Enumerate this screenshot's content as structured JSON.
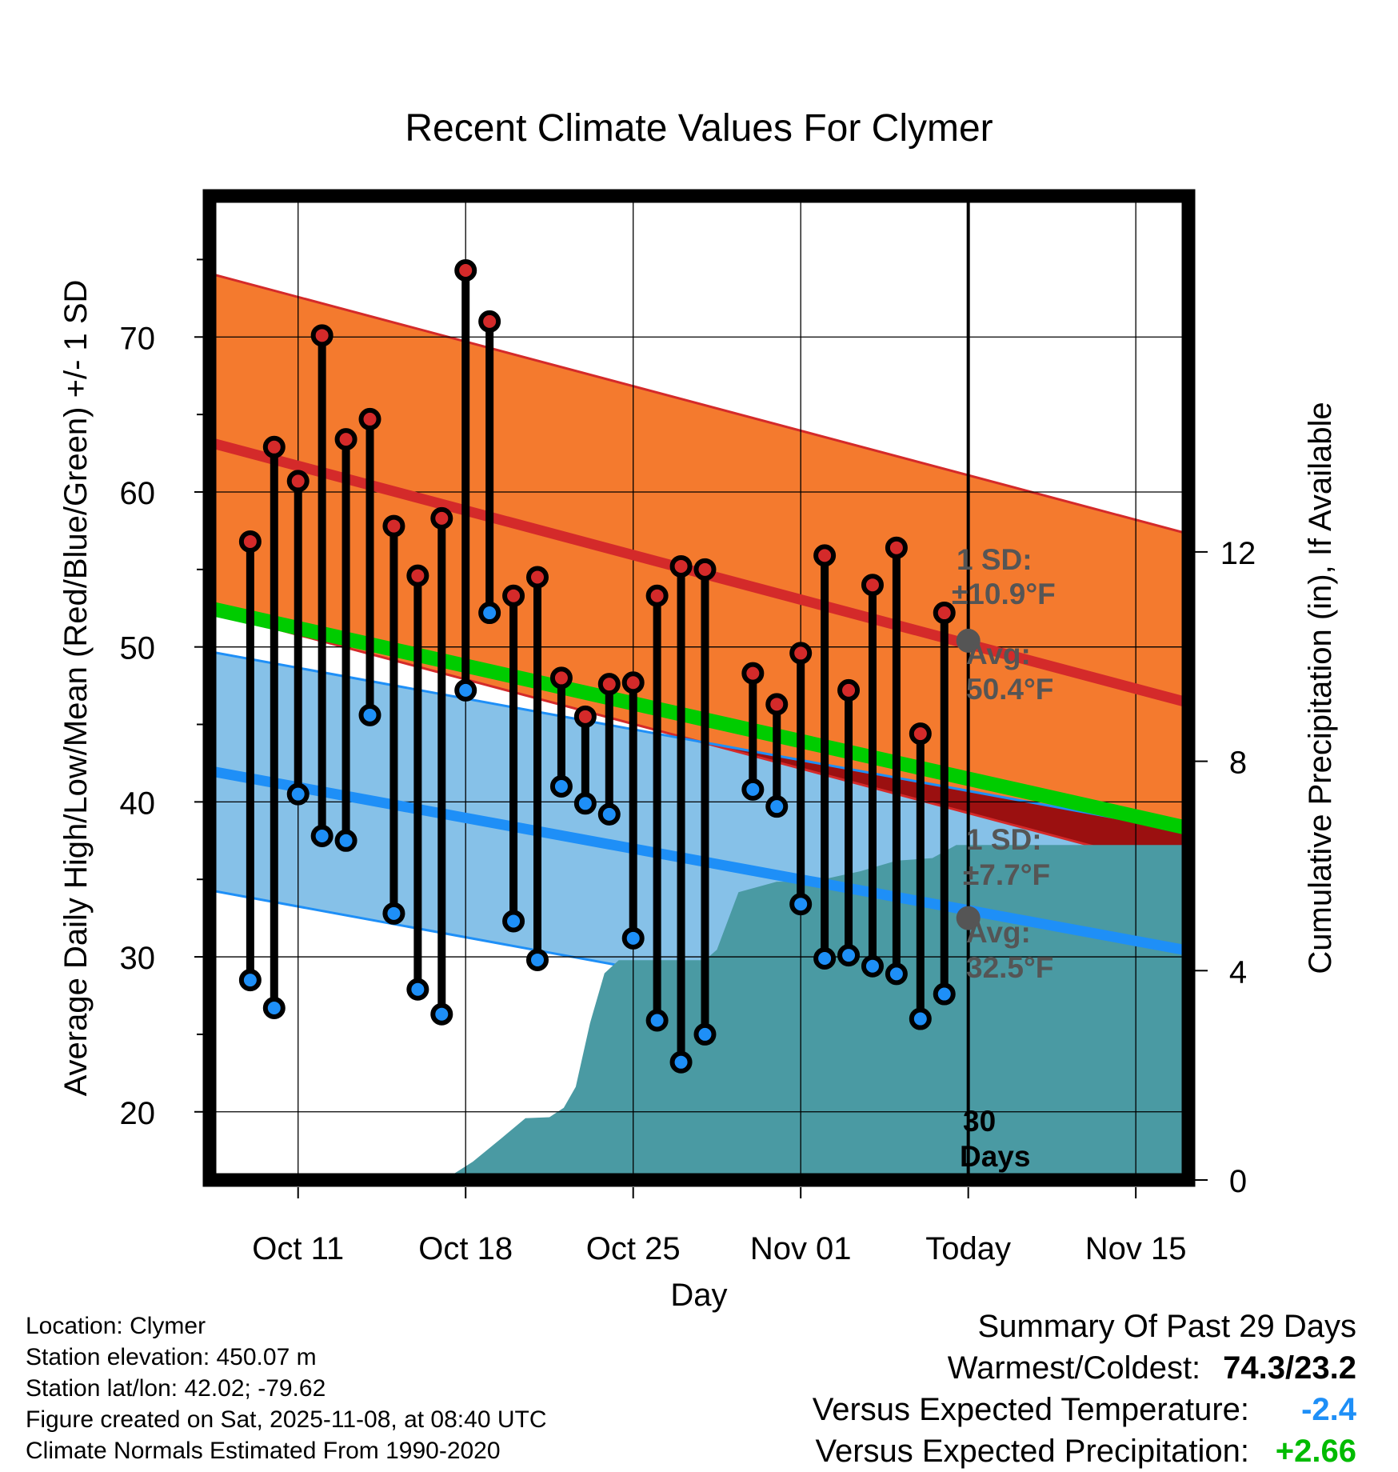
{
  "chart_data": {
    "type": "line",
    "title": "Recent Climate Values For Clymer",
    "xlabel": "Day",
    "ylabel_left": "Average Daily High/Low/Mean (Red/Blue/Green) +/- 1 SD",
    "ylabel_right": "Cumulative Precipitation (in), If Available",
    "ylim_left": [
      15.6,
      79.1
    ],
    "ylim_right": [
      0,
      18.8
    ],
    "xlim_day": [
      -3.7,
      37.2
    ],
    "x_ticks": [
      {
        "day": 0,
        "label": "Oct 11"
      },
      {
        "day": 7,
        "label": "Oct 18"
      },
      {
        "day": 14,
        "label": "Oct 25"
      },
      {
        "day": 21,
        "label": "Nov 01"
      },
      {
        "day": 28,
        "label": "Today"
      },
      {
        "day": 35,
        "label": "Nov 15"
      }
    ],
    "y_ticks_left": [
      {
        "value": 20,
        "label": "20"
      },
      {
        "value": 30,
        "label": "30"
      },
      {
        "value": 40,
        "label": "40"
      },
      {
        "value": 50,
        "label": "50"
      },
      {
        "value": 60,
        "label": "60"
      },
      {
        "value": 70,
        "label": "70"
      }
    ],
    "y_minor_left": [
      25,
      35,
      45,
      55,
      65,
      75
    ],
    "y_ticks_right": [
      {
        "value": 0,
        "label": "0"
      },
      {
        "value": 4,
        "label": "4"
      },
      {
        "value": 8,
        "label": "8"
      },
      {
        "value": 12,
        "label": "12"
      }
    ],
    "daily_days": [
      -2,
      -1,
      0,
      1,
      2,
      3,
      4,
      5,
      6,
      7,
      8,
      9,
      10,
      11,
      12,
      13,
      14,
      15,
      16,
      17,
      19,
      20,
      21,
      22,
      23,
      24,
      25,
      26,
      27
    ],
    "daily_high": [
      56.8,
      62.9,
      60.7,
      70.1,
      63.4,
      64.7,
      57.8,
      54.6,
      58.3,
      74.3,
      71.0,
      53.3,
      54.5,
      48.0,
      45.5,
      47.6,
      47.7,
      53.3,
      55.2,
      55.0,
      48.3,
      46.3,
      49.6,
      55.9,
      47.2,
      54.0,
      56.4,
      44.4,
      52.2
    ],
    "daily_low": [
      28.5,
      26.7,
      40.5,
      37.8,
      37.5,
      45.6,
      32.8,
      27.9,
      26.3,
      47.2,
      52.2,
      32.3,
      29.8,
      41.0,
      39.9,
      39.2,
      31.2,
      25.9,
      23.2,
      25.0,
      40.8,
      39.7,
      33.4,
      29.9,
      30.1,
      29.4,
      28.9,
      26.0,
      27.6
    ],
    "normal_high": {
      "day": [
        -3.7,
        37.2
      ],
      "mean": [
        63.2,
        46.4
      ],
      "sd": 10.9
    },
    "normal_low": {
      "day": [
        -3.7,
        37.2
      ],
      "mean": [
        42.0,
        30.4
      ],
      "sd": 7.7
    },
    "normal_mean": {
      "day": [
        -3.7,
        37.2
      ],
      "values": [
        52.5,
        38.3
      ]
    },
    "precip_cum": {
      "day": [
        6.1,
        7.3,
        8.5,
        9.5,
        10.5,
        11.1,
        11.6,
        12.2,
        12.8,
        13.4,
        14.2,
        15.0,
        17.0,
        17.5,
        18.4,
        20.0,
        21.5,
        22.5,
        23.5,
        25.0,
        26.5,
        27.5,
        37.2
      ],
      "value": [
        0,
        0.35,
        0.8,
        1.18,
        1.2,
        1.38,
        1.78,
        3.0,
        3.95,
        4.2,
        4.2,
        4.2,
        4.2,
        4.4,
        5.5,
        5.7,
        5.7,
        5.8,
        5.9,
        6.1,
        6.15,
        6.4,
        6.4
      ]
    },
    "today_day": 28,
    "today_high_avg": 50.4,
    "today_low_avg": 32.5,
    "annotations": {
      "high_sd_label": "1 SD:",
      "high_sd_value": "±10.9°F",
      "high_avg_label": "Avg:",
      "high_avg_value": "50.4°F",
      "low_sd_label": "1 SD:",
      "low_sd_value": "±7.7°F",
      "low_avg_label": "Avg:",
      "low_avg_value": "32.5°F",
      "days_number": "30",
      "days_label": "Days"
    },
    "colors": {
      "high_band": "#f47a2e",
      "high_line": "#d42a2a",
      "high_edge": "#d42a2a",
      "low_band": "#86c1e8",
      "low_line": "#1e8ff7",
      "mean_line": "#00cc00",
      "overlap": "#9b1010",
      "precip": "#4a9aa3",
      "annotation": "#555555",
      "high_point": "#d42a2a",
      "low_point": "#1e8ff7",
      "today_marker": "#555555"
    }
  },
  "footer": {
    "location": "Location: Clymer",
    "elevation": "Station elevation: 450.07 m",
    "latlon": "Station lat/lon: 42.02; -79.62",
    "created": "Figure created on Sat, 2025-11-08, at 08:40 UTC",
    "normals": "Climate Normals Estimated From 1990-2020"
  },
  "summary": {
    "title": "Summary Of Past 29 Days",
    "warm_cold_label": "Warmest/Coldest:",
    "warm_cold_value": "74.3/23.2",
    "temp_label": "Versus Expected Temperature:",
    "temp_value": "-2.4",
    "temp_color": "#1e8ff7",
    "precip_label": "Versus Expected Precipitation:",
    "precip_value": "+2.66",
    "precip_color": "#00bb00"
  }
}
